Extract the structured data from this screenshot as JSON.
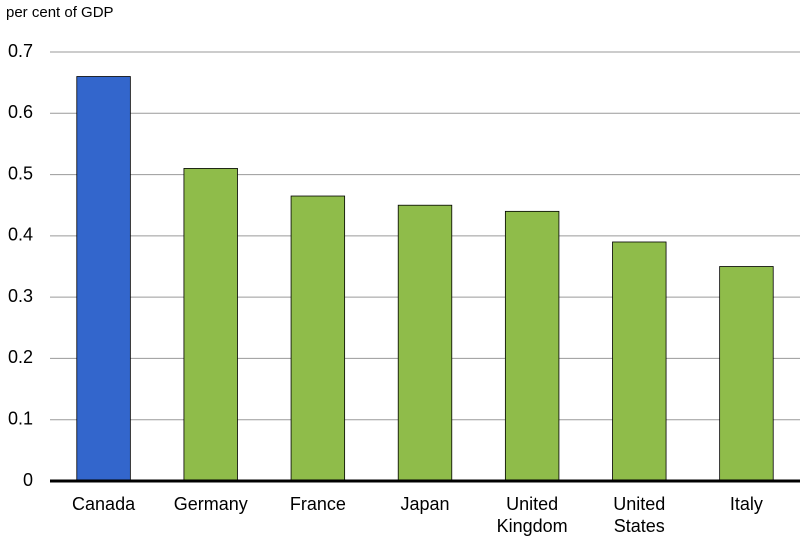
{
  "chart_data": {
    "type": "bar",
    "y_label": "per cent of GDP",
    "categories": [
      "Canada",
      "Germany",
      "France",
      "Japan",
      "United Kingdom",
      "United States",
      "Italy"
    ],
    "values": [
      0.66,
      0.51,
      0.465,
      0.45,
      0.44,
      0.39,
      0.35
    ],
    "colors": [
      "#3366cc",
      "#8fbc4a",
      "#8fbc4a",
      "#8fbc4a",
      "#8fbc4a",
      "#8fbc4a",
      "#8fbc4a"
    ],
    "ylim": [
      0,
      0.7
    ],
    "yticks": [
      0,
      0.1,
      0.2,
      0.3,
      0.4,
      0.5,
      0.6,
      0.7
    ],
    "grid": true
  }
}
